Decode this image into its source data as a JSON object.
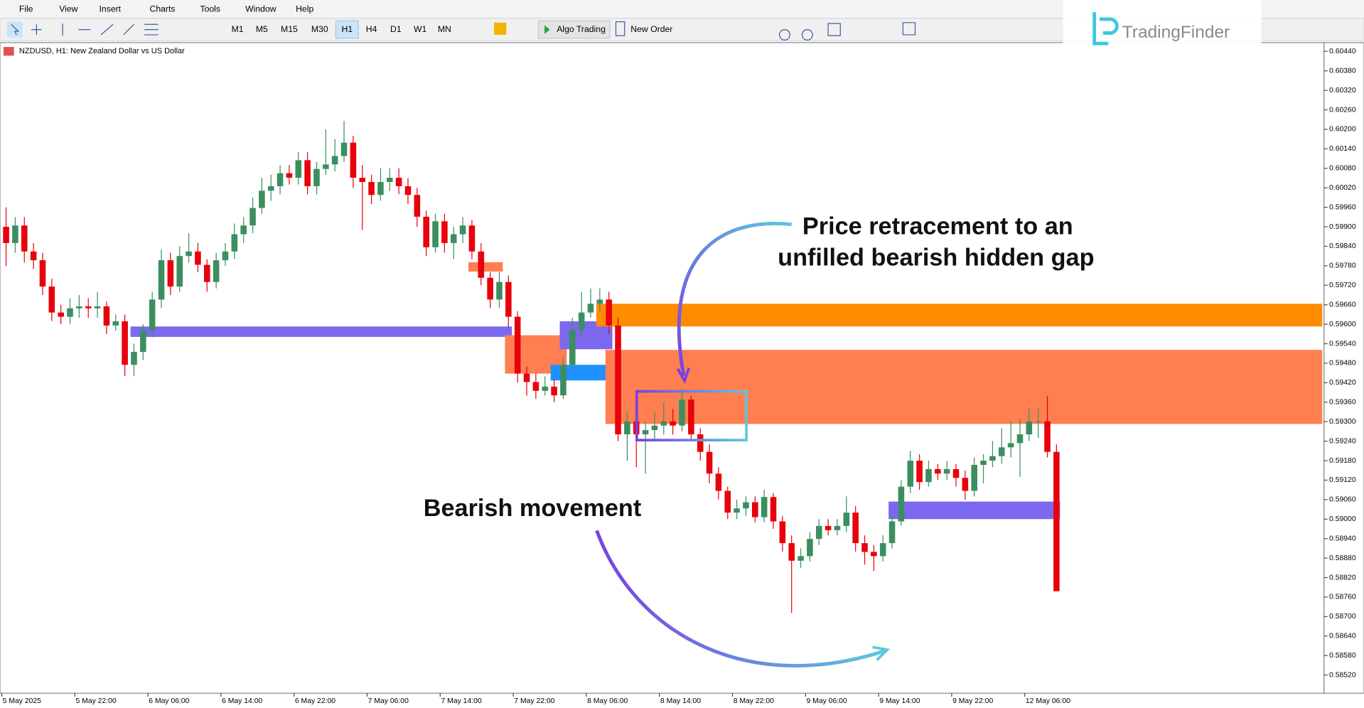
{
  "menu": [
    "File",
    "View",
    "Insert",
    "Charts",
    "Tools",
    "Window",
    "Help"
  ],
  "toolbar": {
    "timeframes": [
      "M1",
      "M5",
      "M15",
      "M30",
      "H1",
      "H4",
      "D1",
      "W1",
      "MN"
    ],
    "active": "H1",
    "algo": "Algo Trading",
    "order": "New Order"
  },
  "logo": "TradingFinder",
  "chart": {
    "type": "candlestick",
    "symbol": "NZDUSD, H1:  New Zealand Dollar vs US Dollar",
    "ylim": [
      0.58464,
      0.60467
    ],
    "up_color": "#3b8f5f",
    "down_color": "#e8000b",
    "yticks": [
      {
        "value": 0.6044,
        "label": "0.60440"
      },
      {
        "value": 0.6038,
        "label": "0.60380"
      },
      {
        "value": 0.6032,
        "label": "0.60320"
      },
      {
        "value": 0.6026,
        "label": "0.60260"
      },
      {
        "value": 0.602,
        "label": "0.60200"
      },
      {
        "value": 0.6014,
        "label": "0.60140"
      },
      {
        "value": 0.6008,
        "label": "0.60080"
      },
      {
        "value": 0.6002,
        "label": "0.60020"
      },
      {
        "value": 0.5996,
        "label": "0.59960"
      },
      {
        "value": 0.599,
        "label": "0.59900"
      },
      {
        "value": 0.5984,
        "label": "0.59840"
      },
      {
        "value": 0.5978,
        "label": "0.59780"
      },
      {
        "value": 0.5972,
        "label": "0.59720"
      },
      {
        "value": 0.5966,
        "label": "0.59660"
      },
      {
        "value": 0.596,
        "label": "0.59600"
      },
      {
        "value": 0.5954,
        "label": "0.59540"
      },
      {
        "value": 0.5948,
        "label": "0.59480"
      },
      {
        "value": 0.5942,
        "label": "0.59420"
      },
      {
        "value": 0.5936,
        "label": "0.59360"
      },
      {
        "value": 0.593,
        "label": "0.59300"
      },
      {
        "value": 0.5924,
        "label": "0.59240"
      },
      {
        "value": 0.5918,
        "label": "0.59180"
      },
      {
        "value": 0.5912,
        "label": "0.59120"
      },
      {
        "value": 0.5906,
        "label": "0.59060"
      },
      {
        "value": 0.59,
        "label": "0.59000"
      },
      {
        "value": 0.5894,
        "label": "0.58940"
      },
      {
        "value": 0.5888,
        "label": "0.58880"
      },
      {
        "value": 0.5882,
        "label": "0.58820"
      },
      {
        "value": 0.5876,
        "label": "0.58760"
      },
      {
        "value": 0.587,
        "label": "0.58700"
      },
      {
        "value": 0.5864,
        "label": "0.58640"
      },
      {
        "value": 0.5858,
        "label": "0.58580"
      },
      {
        "value": 0.5852,
        "label": "0.58520"
      }
    ],
    "time_labels": [
      "5 May 2025",
      "5 May 22:00",
      "6 May 06:00",
      "6 May 14:00",
      "6 May 22:00",
      "7 May 06:00",
      "7 May 14:00",
      "7 May 22:00",
      "8 May 06:00",
      "8 May 14:00",
      "8 May 22:00",
      "9 May 06:00",
      "9 May 14:00",
      "9 May 22:00",
      "12 May 06:00"
    ],
    "candles": [
      [
        0.599,
        0.5996,
        0.5978,
        0.5985
      ],
      [
        0.5985,
        0.5993,
        0.5982,
        0.59904
      ],
      [
        0.59904,
        0.5993,
        0.5979,
        0.59824
      ],
      [
        0.59824,
        0.5985,
        0.5977,
        0.59797
      ],
      [
        0.59797,
        0.5982,
        0.5969,
        0.59716
      ],
      [
        0.59716,
        0.5974,
        0.5961,
        0.59636
      ],
      [
        0.59636,
        0.5966,
        0.596,
        0.59623
      ],
      [
        0.59623,
        0.5968,
        0.596,
        0.59649
      ],
      [
        0.59649,
        0.5969,
        0.5962,
        0.59655
      ],
      [
        0.59655,
        0.5968,
        0.5962,
        0.59649
      ],
      [
        0.59649,
        0.597,
        0.5962,
        0.59655
      ],
      [
        0.59655,
        0.5967,
        0.5957,
        0.59596
      ],
      [
        0.59596,
        0.5963,
        0.5958,
        0.59609
      ],
      [
        0.59609,
        0.5963,
        0.5944,
        0.59475
      ],
      [
        0.59475,
        0.5954,
        0.5944,
        0.59515
      ],
      [
        0.59515,
        0.596,
        0.5949,
        0.59582
      ],
      [
        0.59582,
        0.597,
        0.5956,
        0.59676
      ],
      [
        0.59676,
        0.5983,
        0.5965,
        0.59797
      ],
      [
        0.59797,
        0.5982,
        0.5969,
        0.59716
      ],
      [
        0.59716,
        0.5984,
        0.597,
        0.5981
      ],
      [
        0.5981,
        0.5988,
        0.5979,
        0.59824
      ],
      [
        0.59824,
        0.5985,
        0.5976,
        0.59783
      ],
      [
        0.59783,
        0.598,
        0.597,
        0.5973
      ],
      [
        0.5973,
        0.5982,
        0.5971,
        0.59797
      ],
      [
        0.59797,
        0.5985,
        0.5978,
        0.59824
      ],
      [
        0.59824,
        0.5991,
        0.598,
        0.59877
      ],
      [
        0.59877,
        0.5993,
        0.5985,
        0.59904
      ],
      [
        0.59904,
        0.5999,
        0.5988,
        0.59958
      ],
      [
        0.59958,
        0.6005,
        0.5994,
        0.60011
      ],
      [
        0.60011,
        0.6006,
        0.5998,
        0.60025
      ],
      [
        0.60025,
        0.6009,
        0.6,
        0.60065
      ],
      [
        0.60065,
        0.6009,
        0.6003,
        0.60051
      ],
      [
        0.60051,
        0.6013,
        0.6003,
        0.60105
      ],
      [
        0.60105,
        0.6013,
        0.6,
        0.60025
      ],
      [
        0.60025,
        0.601,
        0.6,
        0.60078
      ],
      [
        0.60078,
        0.602,
        0.6006,
        0.60092
      ],
      [
        0.60092,
        0.6017,
        0.6007,
        0.60118
      ],
      [
        0.60118,
        0.60226,
        0.601,
        0.60159
      ],
      [
        0.60159,
        0.6018,
        0.6002,
        0.60051
      ],
      [
        0.60051,
        0.6009,
        0.5989,
        0.60038
      ],
      [
        0.60038,
        0.6006,
        0.5997,
        0.59998
      ],
      [
        0.59998,
        0.6008,
        0.5998,
        0.60038
      ],
      [
        0.60038,
        0.6008,
        0.6001,
        0.60051
      ],
      [
        0.60051,
        0.6008,
        0.6,
        0.60025
      ],
      [
        0.60025,
        0.6005,
        0.5997,
        0.59998
      ],
      [
        0.59998,
        0.6002,
        0.599,
        0.59931
      ],
      [
        0.59931,
        0.5995,
        0.5981,
        0.59837
      ],
      [
        0.59837,
        0.5994,
        0.5982,
        0.59917
      ],
      [
        0.59917,
        0.5994,
        0.5982,
        0.5985
      ],
      [
        0.5985,
        0.599,
        0.598,
        0.59877
      ],
      [
        0.59877,
        0.5993,
        0.5985,
        0.59904
      ],
      [
        0.59904,
        0.5992,
        0.598,
        0.59824
      ],
      [
        0.59824,
        0.5985,
        0.5972,
        0.59743
      ],
      [
        0.59743,
        0.5976,
        0.5965,
        0.59676
      ],
      [
        0.59676,
        0.5976,
        0.5965,
        0.5973
      ],
      [
        0.5973,
        0.5975,
        0.5959,
        0.59623
      ],
      [
        0.59623,
        0.5964,
        0.5942,
        0.59448
      ],
      [
        0.59448,
        0.5947,
        0.5938,
        0.59422
      ],
      [
        0.59422,
        0.5945,
        0.5937,
        0.59395
      ],
      [
        0.59395,
        0.5944,
        0.5938,
        0.59408
      ],
      [
        0.59408,
        0.5943,
        0.5936,
        0.59381
      ],
      [
        0.59381,
        0.595,
        0.5937,
        0.59475
      ],
      [
        0.59475,
        0.5962,
        0.5946,
        0.59582
      ],
      [
        0.59582,
        0.597,
        0.5956,
        0.59636
      ],
      [
        0.59636,
        0.5971,
        0.5962,
        0.59663
      ],
      [
        0.59663,
        0.5971,
        0.5964,
        0.59676
      ],
      [
        0.59676,
        0.597,
        0.5957,
        0.59596
      ],
      [
        0.59596,
        0.5962,
        0.5924,
        0.59261
      ],
      [
        0.59261,
        0.5933,
        0.5918,
        0.59301
      ],
      [
        0.59301,
        0.5932,
        0.5916,
        0.59261
      ],
      [
        0.59261,
        0.593,
        0.5914,
        0.59274
      ],
      [
        0.59274,
        0.5933,
        0.5924,
        0.59288
      ],
      [
        0.59288,
        0.5936,
        0.5926,
        0.59301
      ],
      [
        0.59301,
        0.5934,
        0.5926,
        0.59288
      ],
      [
        0.59288,
        0.594,
        0.5927,
        0.59368
      ],
      [
        0.59368,
        0.5938,
        0.5924,
        0.59261
      ],
      [
        0.59261,
        0.5928,
        0.5918,
        0.59207
      ],
      [
        0.59207,
        0.5923,
        0.5911,
        0.5914
      ],
      [
        0.5914,
        0.5916,
        0.5906,
        0.59087
      ],
      [
        0.59087,
        0.591,
        0.59,
        0.5902
      ],
      [
        0.5902,
        0.5906,
        0.59,
        0.59033
      ],
      [
        0.59033,
        0.5907,
        0.5901,
        0.59052
      ],
      [
        0.59052,
        0.5907,
        0.5899,
        0.59006
      ],
      [
        0.59006,
        0.5909,
        0.5899,
        0.59068
      ],
      [
        0.59068,
        0.5908,
        0.5897,
        0.58993
      ],
      [
        0.58993,
        0.5901,
        0.589,
        0.58926
      ],
      [
        0.58926,
        0.5895,
        0.58711,
        0.58872
      ],
      [
        0.58872,
        0.5891,
        0.5885,
        0.58886
      ],
      [
        0.58886,
        0.5896,
        0.5887,
        0.58939
      ],
      [
        0.58939,
        0.59,
        0.5892,
        0.58979
      ],
      [
        0.58979,
        0.59,
        0.5895,
        0.58966
      ],
      [
        0.58966,
        0.59,
        0.5895,
        0.58979
      ],
      [
        0.58979,
        0.5907,
        0.5896,
        0.5902
      ],
      [
        0.5902,
        0.5904,
        0.589,
        0.58926
      ],
      [
        0.58926,
        0.5895,
        0.5886,
        0.58899
      ],
      [
        0.58899,
        0.5892,
        0.5884,
        0.58886
      ],
      [
        0.58886,
        0.5895,
        0.5887,
        0.58926
      ],
      [
        0.58926,
        0.5901,
        0.5891,
        0.58993
      ],
      [
        0.58993,
        0.5912,
        0.5898,
        0.591
      ],
      [
        0.591,
        0.5921,
        0.5908,
        0.5918
      ],
      [
        0.5918,
        0.592,
        0.5909,
        0.59114
      ],
      [
        0.59114,
        0.5918,
        0.591,
        0.59154
      ],
      [
        0.59154,
        0.5917,
        0.5912,
        0.5914
      ],
      [
        0.5914,
        0.5918,
        0.5912,
        0.59154
      ],
      [
        0.59154,
        0.5917,
        0.591,
        0.59127
      ],
      [
        0.59127,
        0.5915,
        0.5906,
        0.59087
      ],
      [
        0.59087,
        0.5919,
        0.5907,
        0.59167
      ],
      [
        0.59167,
        0.592,
        0.5911,
        0.5918
      ],
      [
        0.5918,
        0.5924,
        0.5916,
        0.59194
      ],
      [
        0.59194,
        0.5928,
        0.5917,
        0.59221
      ],
      [
        0.59221,
        0.593,
        0.5919,
        0.59234
      ],
      [
        0.59234,
        0.5931,
        0.5913,
        0.59261
      ],
      [
        0.59261,
        0.5934,
        0.5924,
        0.59301
      ],
      [
        0.59301,
        0.5934,
        0.5925,
        0.59301
      ],
      [
        0.59301,
        0.5938,
        0.5919,
        0.59207
      ],
      [
        0.59207,
        0.5923,
        0.58778,
        0.58778
      ]
    ],
    "zones": [
      {
        "top": 0.59593,
        "bottom": 0.59561,
        "from": 14,
        "to": 55,
        "color": "#7b68ee"
      },
      {
        "top": 0.59791,
        "bottom": 0.59762,
        "from": 51,
        "to": 54,
        "color": "#ff7f50"
      },
      {
        "top": 0.59566,
        "bottom": 0.59448,
        "from": 55,
        "to": 61,
        "color": "#ff7f50"
      },
      {
        "top": 0.59609,
        "bottom": 0.59523,
        "from": 61,
        "to": 66,
        "color": "#7b68ee"
      },
      {
        "top": 0.59475,
        "bottom": 0.59427,
        "from": 60,
        "to": 66,
        "color": "#1e90ff"
      },
      {
        "top": 0.59663,
        "bottom": 0.59593,
        "from": 65,
        "extend": true,
        "color": "#ff8c00"
      },
      {
        "top": 0.59521,
        "bottom": 0.59293,
        "from": 66,
        "extend": true,
        "color": "#ff7f50"
      },
      {
        "top": 0.59054,
        "bottom": 0.59,
        "from": 97,
        "to": 115,
        "color": "#7b68ee"
      }
    ],
    "annotations": {
      "retracement": [
        "Price retracement to an",
        "unfilled bearish hidden gap"
      ],
      "bearish": "Bearish movement"
    }
  }
}
